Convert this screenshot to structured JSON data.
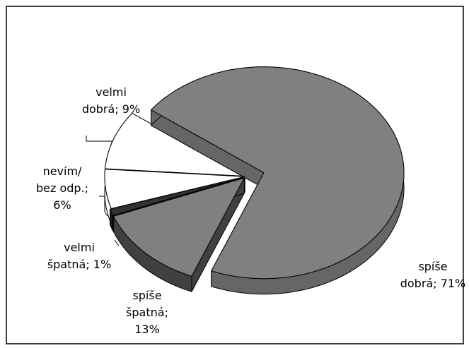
{
  "chart_data": {
    "type": "pie",
    "values": [
      71,
      13,
      1,
      6,
      9
    ],
    "value_labels": [
      [
        "spíše",
        "dobrá; 71%"
      ],
      [
        "spíše",
        "špatná;",
        "13%"
      ],
      [
        "velmi",
        "špatná; 1%"
      ],
      [
        "nevím/",
        "bez odp.;",
        "6%"
      ],
      [
        "velmi",
        "dobrá; 9%"
      ]
    ],
    "colors": [
      "#808080",
      "#808080",
      "#333333",
      "#ffffff",
      "#ffffff"
    ],
    "side_colors": [
      "#666666",
      "#404040",
      "#1a1a1a",
      "#ffffff",
      "#ffffff"
    ]
  }
}
